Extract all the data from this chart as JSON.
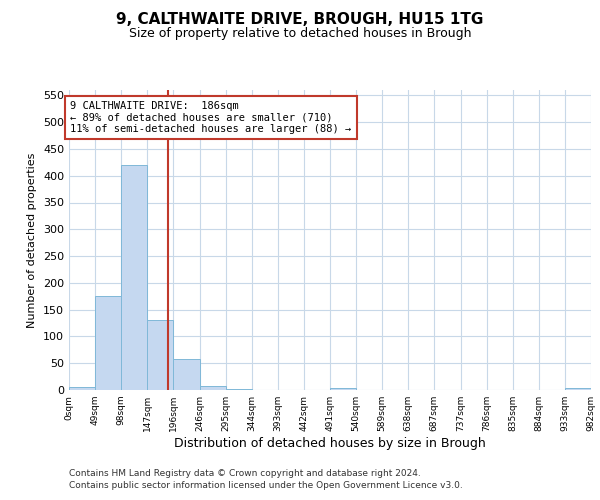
{
  "title1": "9, CALTHWAITE DRIVE, BROUGH, HU15 1TG",
  "title2": "Size of property relative to detached houses in Brough",
  "xlabel": "Distribution of detached houses by size in Brough",
  "ylabel": "Number of detached properties",
  "bar_edges": [
    0,
    49,
    98,
    147,
    196,
    246,
    295,
    344,
    393,
    442,
    491,
    540,
    589,
    638,
    687,
    737,
    786,
    835,
    884,
    933,
    982
  ],
  "bar_heights": [
    5,
    175,
    420,
    130,
    58,
    8,
    2,
    0,
    0,
    0,
    3,
    0,
    0,
    0,
    0,
    0,
    0,
    0,
    0,
    3
  ],
  "bar_color": "#c5d8f0",
  "bar_edgecolor": "#7fb8d8",
  "vline_x": 186,
  "vline_color": "#c0392b",
  "annotation_line1": "9 CALTHWAITE DRIVE:  186sqm",
  "annotation_line2": "← 89% of detached houses are smaller (710)",
  "annotation_line3": "11% of semi-detached houses are larger (88) →",
  "annotation_box_color": "#c0392b",
  "ylim": [
    0,
    560
  ],
  "yticks": [
    0,
    50,
    100,
    150,
    200,
    250,
    300,
    350,
    400,
    450,
    500,
    550
  ],
  "footnote1": "Contains HM Land Registry data © Crown copyright and database right 2024.",
  "footnote2": "Contains public sector information licensed under the Open Government Licence v3.0.",
  "bg_color": "#ffffff",
  "grid_color": "#c8d8e8",
  "tick_labels": [
    "0sqm",
    "49sqm",
    "98sqm",
    "147sqm",
    "196sqm",
    "246sqm",
    "295sqm",
    "344sqm",
    "393sqm",
    "442sqm",
    "491sqm",
    "540sqm",
    "589sqm",
    "638sqm",
    "687sqm",
    "737sqm",
    "786sqm",
    "835sqm",
    "884sqm",
    "933sqm",
    "982sqm"
  ]
}
